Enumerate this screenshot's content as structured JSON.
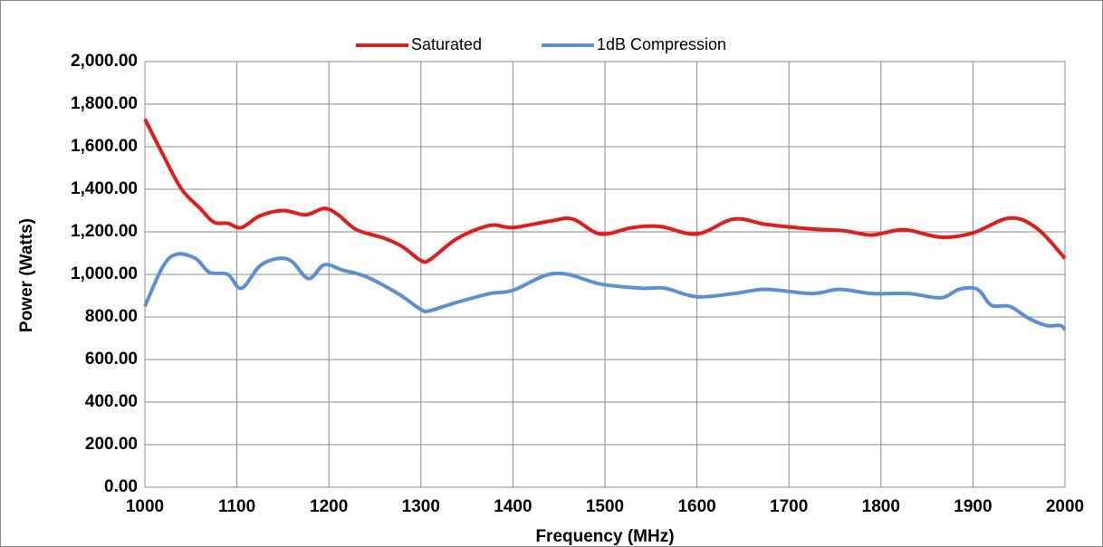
{
  "chart_data": {
    "type": "line",
    "xlabel": "Frequency (MHz)",
    "ylabel": "Power (Watts)",
    "xlim": [
      1000,
      2000
    ],
    "xticks": [
      1000,
      1100,
      1200,
      1300,
      1400,
      1500,
      1600,
      1700,
      1800,
      1900,
      2000
    ],
    "ylim": [
      0,
      2000
    ],
    "yticks": [
      {
        "value": 0,
        "label": "0.00"
      },
      {
        "value": 200,
        "label": "200.00"
      },
      {
        "value": 400,
        "label": "400.00"
      },
      {
        "value": 600,
        "label": "600.00"
      },
      {
        "value": 800,
        "label": "800.00"
      },
      {
        "value": 1000,
        "label": "1,000.00"
      },
      {
        "value": 1200,
        "label": "1,200.00"
      },
      {
        "value": 1400,
        "label": "1,400.00"
      },
      {
        "value": 1600,
        "label": "1,600.00"
      },
      {
        "value": 1800,
        "label": "1,800.00"
      },
      {
        "value": 2000,
        "label": "2,000.00"
      }
    ],
    "grid": true,
    "legend": "top",
    "series": [
      {
        "name": "Saturated",
        "color": "#e41a1c",
        "x": [
          1000,
          1020,
          1040,
          1060,
          1075,
          1090,
          1105,
          1125,
          1150,
          1175,
          1195,
          1210,
          1230,
          1260,
          1280,
          1300,
          1310,
          1340,
          1375,
          1400,
          1440,
          1465,
          1495,
          1530,
          1560,
          1600,
          1640,
          1675,
          1720,
          1760,
          1790,
          1825,
          1865,
          1900,
          1940,
          1970,
          2000
        ],
        "values": [
          1730,
          1560,
          1400,
          1310,
          1245,
          1240,
          1220,
          1275,
          1300,
          1280,
          1310,
          1280,
          1210,
          1170,
          1130,
          1065,
          1070,
          1170,
          1230,
          1220,
          1250,
          1260,
          1190,
          1220,
          1225,
          1190,
          1260,
          1235,
          1215,
          1205,
          1185,
          1210,
          1175,
          1195,
          1265,
          1215,
          1075
        ]
      },
      {
        "name": "1dB Compression",
        "color": "#5b8fd4",
        "x": [
          1000,
          1020,
          1035,
          1055,
          1070,
          1090,
          1105,
          1125,
          1145,
          1160,
          1178,
          1195,
          1215,
          1240,
          1275,
          1300,
          1310,
          1340,
          1375,
          1400,
          1435,
          1460,
          1495,
          1540,
          1565,
          1600,
          1640,
          1675,
          1725,
          1755,
          1790,
          1830,
          1865,
          1885,
          1905,
          1920,
          1940,
          1960,
          1980,
          1995,
          2000
        ],
        "values": [
          850,
          1040,
          1095,
          1075,
          1010,
          1000,
          935,
          1040,
          1075,
          1060,
          980,
          1045,
          1020,
          990,
          910,
          835,
          830,
          870,
          910,
          925,
          995,
          1000,
          955,
          935,
          935,
          895,
          910,
          930,
          910,
          930,
          910,
          910,
          890,
          930,
          930,
          855,
          850,
          795,
          760,
          760,
          740
        ]
      }
    ]
  }
}
